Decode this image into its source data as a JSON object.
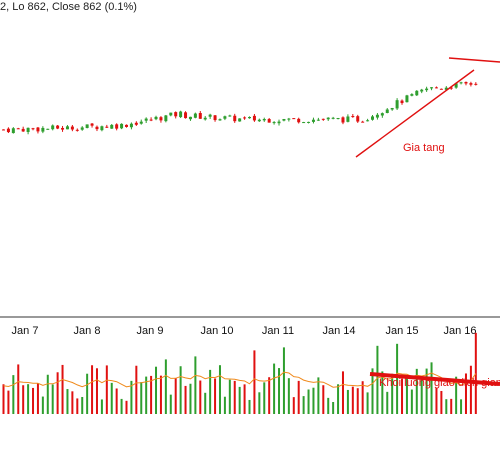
{
  "header": {
    "ohlc_text": "2, Lo 862, Close 862 (0.1%)"
  },
  "colors": {
    "up": "#2e9e2e",
    "down": "#e01010",
    "annotation": "#e01010",
    "volume_ma": "#f08a1c",
    "axis": "#333333"
  },
  "chart_data": [
    {
      "type": "candlestick",
      "title": "",
      "x_labels": [
        "Jan 7",
        "Jan 8",
        "Jan 9",
        "Jan 10",
        "Jan 11",
        "Jan 14",
        "Jan 15",
        "Jan 16"
      ],
      "y_range": [
        820,
        870
      ],
      "grid": false,
      "segments": [
        {
          "day": "Jan 7",
          "start": 846,
          "end": 846.5,
          "bars": 13
        },
        {
          "day": "Jan 8",
          "start": 846.5,
          "end": 847.5,
          "bars": 12
        },
        {
          "day": "Jan 9",
          "start": 847.5,
          "end": 851.5,
          "bars": 12
        },
        {
          "day": "Jan 10",
          "start": 851,
          "end": 849.5,
          "bars": 13
        },
        {
          "day": "Jan 11",
          "start": 849.5,
          "end": 849.5,
          "bars": 12
        },
        {
          "day": "Jan 14",
          "start": 849.5,
          "end": 849.5,
          "bars": 12
        },
        {
          "day": "Jan 15",
          "start": 849.5,
          "end": 860,
          "bars": 13
        },
        {
          "day": "Jan 16",
          "start": 860,
          "end": 862,
          "bars": 10
        }
      ],
      "annotations": [
        {
          "text": "Gia tang",
          "kind": "rising trendline"
        },
        {
          "text": "",
          "kind": "falling line over recent highs"
        }
      ]
    },
    {
      "type": "bar",
      "title": "",
      "series": [
        {
          "name": "",
          "kind": "volume"
        },
        {
          "name": "",
          "kind": "moving-average line"
        }
      ],
      "annotations": [
        {
          "text": "Khoi luong giao dich giam",
          "kind": "falling trendline"
        }
      ]
    }
  ]
}
